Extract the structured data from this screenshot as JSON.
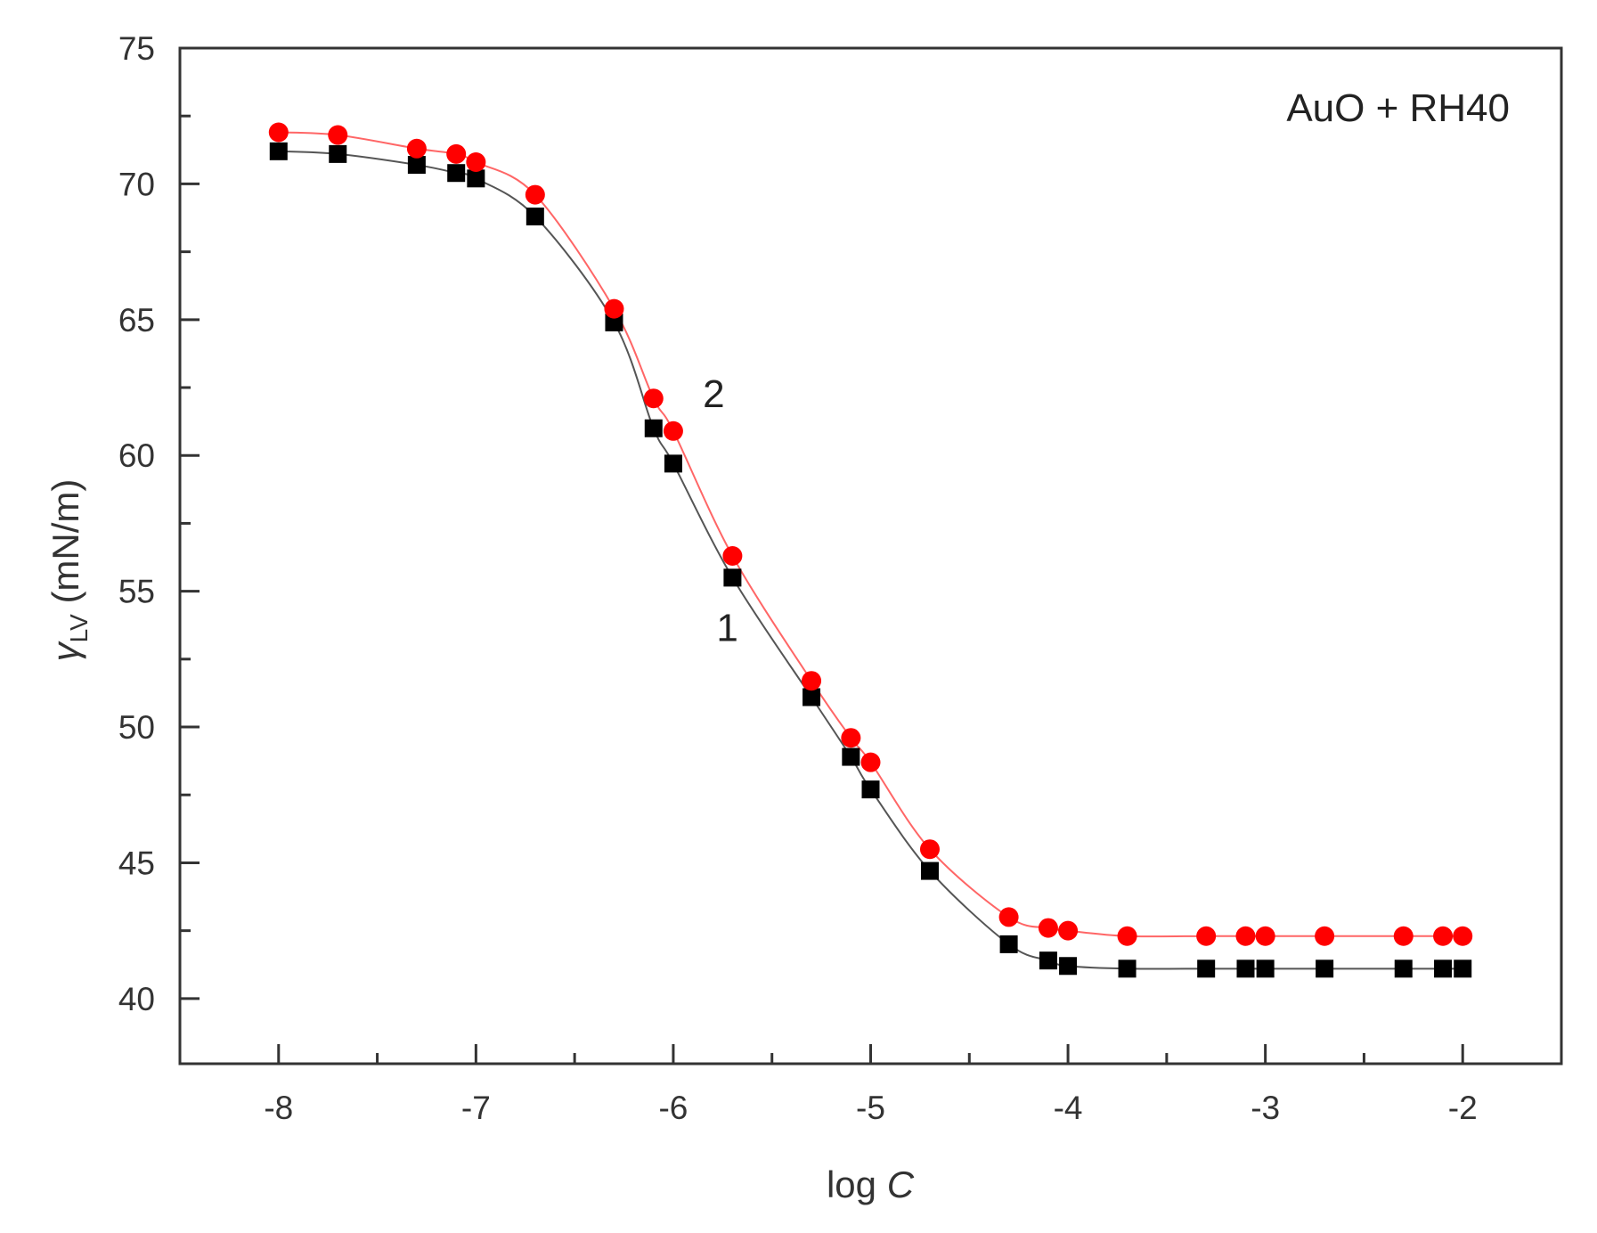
{
  "chart_data": {
    "type": "scatter",
    "title": "",
    "annotation": "AuO + RH40",
    "xlabel": "log C",
    "xlabel_parts": {
      "prefix": "log ",
      "italic": "C"
    },
    "ylabel": "γLV (mN/m)",
    "ylabel_parts": {
      "symbol": "γ",
      "subscript": "LV",
      "unit": " (mN/m)"
    },
    "xlim": [
      -8.5,
      -1.5
    ],
    "ylim": [
      37.6,
      75
    ],
    "x_ticks": [
      -8,
      -7,
      -6,
      -5,
      -4,
      -3,
      -2
    ],
    "x_tick_labels": [
      "-8",
      "-7",
      "-6",
      "-5",
      "-4",
      "-3",
      "-2"
    ],
    "y_ticks": [
      40,
      45,
      50,
      55,
      60,
      65,
      70,
      75
    ],
    "y_tick_labels": [
      "40",
      "45",
      "50",
      "55",
      "60",
      "65",
      "70",
      "75"
    ],
    "grid": false,
    "legend": "none (curves labeled inline '1' and '2')",
    "series": [
      {
        "name": "1",
        "marker": "square",
        "color": "#000000",
        "line_color": "#555555",
        "label_pos": [
          -5.7,
          53.7
        ],
        "x": [
          -8,
          -7.7,
          -7.3,
          -7.1,
          -7.0,
          -6.7,
          -6.3,
          -6.1,
          -6.0,
          -5.7,
          -5.3,
          -5.1,
          -5.0,
          -4.7,
          -4.3,
          -4.1,
          -4.0,
          -3.7,
          -3.3,
          -3.1,
          -3.0,
          -2.7,
          -2.3,
          -2.1,
          -2.0
        ],
        "values": [
          71.2,
          71.1,
          70.7,
          70.4,
          70.2,
          68.8,
          64.9,
          61.0,
          59.7,
          55.5,
          51.1,
          48.9,
          47.7,
          44.7,
          42.0,
          41.4,
          41.2,
          41.1,
          41.1,
          41.1,
          41.1,
          41.1,
          41.1,
          41.1,
          41.1
        ]
      },
      {
        "name": "2",
        "marker": "circle",
        "color": "#ff0000",
        "line_color": "#ff6666",
        "label_pos": [
          -5.85,
          62.3
        ],
        "x": [
          -8,
          -7.7,
          -7.3,
          -7.1,
          -7.0,
          -6.7,
          -6.3,
          -6.1,
          -6.0,
          -5.7,
          -5.3,
          -5.1,
          -5.0,
          -4.7,
          -4.3,
          -4.1,
          -4.0,
          -3.7,
          -3.3,
          -3.1,
          -3.0,
          -2.7,
          -2.3,
          -2.1,
          -2.0
        ],
        "values": [
          71.9,
          71.8,
          71.3,
          71.1,
          70.8,
          69.6,
          65.4,
          62.1,
          60.9,
          56.3,
          51.7,
          49.6,
          48.7,
          45.5,
          43.0,
          42.6,
          42.5,
          42.3,
          42.3,
          42.3,
          42.3,
          42.3,
          42.3,
          42.3,
          42.3
        ]
      }
    ]
  }
}
